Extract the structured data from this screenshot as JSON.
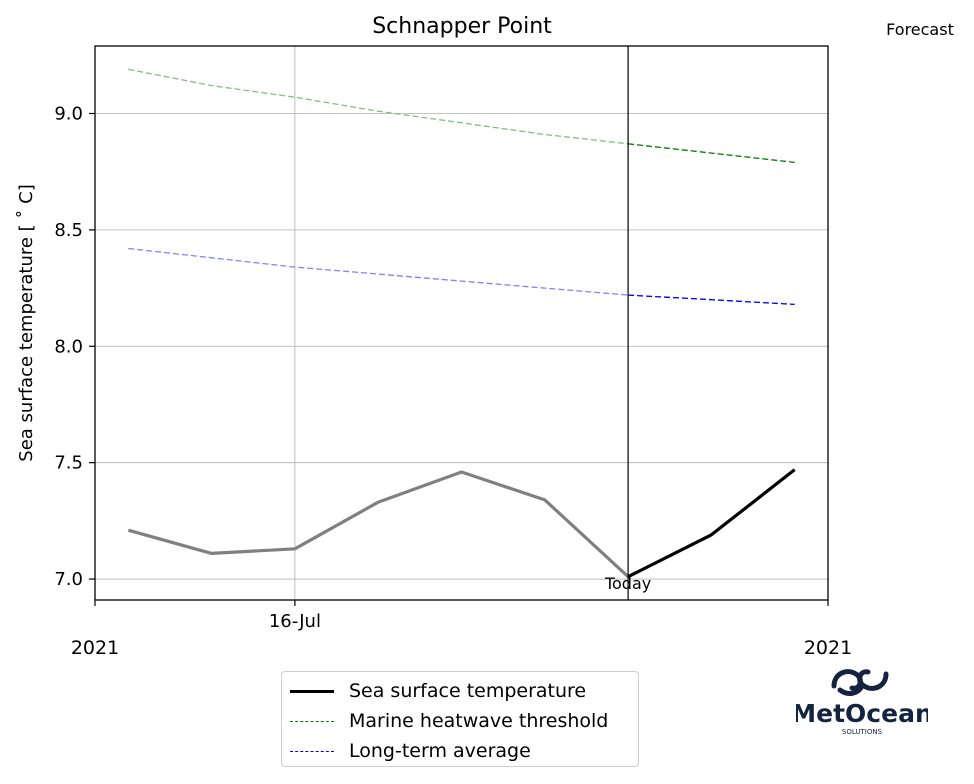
{
  "chart_data": {
    "type": "line",
    "title": "Schnapper Point",
    "ylabel": "Sea surface temperature [$^\\circ$C]",
    "ylabel_display": "Sea surface temperature [ ˚ C]",
    "ylim": [
      6.91,
      9.29
    ],
    "yticks": [
      7.0,
      7.5,
      8.0,
      8.5,
      9.0
    ],
    "ytick_labels": [
      "7.0",
      "7.5",
      "8.0",
      "8.5",
      "9.0"
    ],
    "x_index_range": [
      -0.4,
      8.4
    ],
    "xtick_positions": [
      -0.4,
      2.0,
      8.4
    ],
    "xtick_labels": [
      "",
      "16-Jul",
      ""
    ],
    "x_year_left": "2021",
    "x_year_right": "2021",
    "today_index": 6,
    "today_label": "Today",
    "forecast_label": "Forecast",
    "grid": true,
    "legend_position": "lower-center",
    "series": [
      {
        "name": "Sea surface temperature",
        "kind": "observed",
        "color": "#808080",
        "x": [
          0,
          1,
          2,
          3,
          4,
          5,
          6
        ],
        "values": [
          7.21,
          7.11,
          7.13,
          7.33,
          7.46,
          7.34,
          7.01
        ]
      },
      {
        "name": "Sea surface temperature",
        "kind": "forecast",
        "color": "#000000",
        "x": [
          6,
          7,
          8
        ],
        "values": [
          7.01,
          7.19,
          7.47
        ]
      },
      {
        "name": "Marine heatwave threshold",
        "kind": "observed",
        "color": "#80c080",
        "x": [
          0,
          1,
          2,
          3,
          4,
          5,
          6
        ],
        "values": [
          9.19,
          9.12,
          9.07,
          9.01,
          8.96,
          8.91,
          8.87
        ]
      },
      {
        "name": "Marine heatwave threshold",
        "kind": "forecast",
        "color": "#008000",
        "x": [
          6,
          7,
          8
        ],
        "values": [
          8.87,
          8.83,
          8.79
        ]
      },
      {
        "name": "Long-term average",
        "kind": "observed",
        "color": "#8080ff",
        "x": [
          0,
          1,
          2,
          3,
          4,
          5,
          6
        ],
        "values": [
          8.42,
          8.38,
          8.34,
          8.31,
          8.28,
          8.25,
          8.22
        ]
      },
      {
        "name": "Long-term average",
        "kind": "forecast",
        "color": "#0000ff",
        "x": [
          6,
          7,
          8
        ],
        "values": [
          8.22,
          8.2,
          8.18
        ]
      }
    ]
  },
  "legend": {
    "items": [
      {
        "label": "Sea surface temperature",
        "color": "#000000",
        "style": "solid"
      },
      {
        "label": "Marine heatwave threshold",
        "color": "#008000",
        "style": "dashed"
      },
      {
        "label": "Long-term average",
        "color": "#0000ff",
        "style": "dashed"
      }
    ]
  },
  "logo": {
    "name": "MetOcean",
    "tagline": "SOLUTIONS",
    "color": "#14233f"
  }
}
